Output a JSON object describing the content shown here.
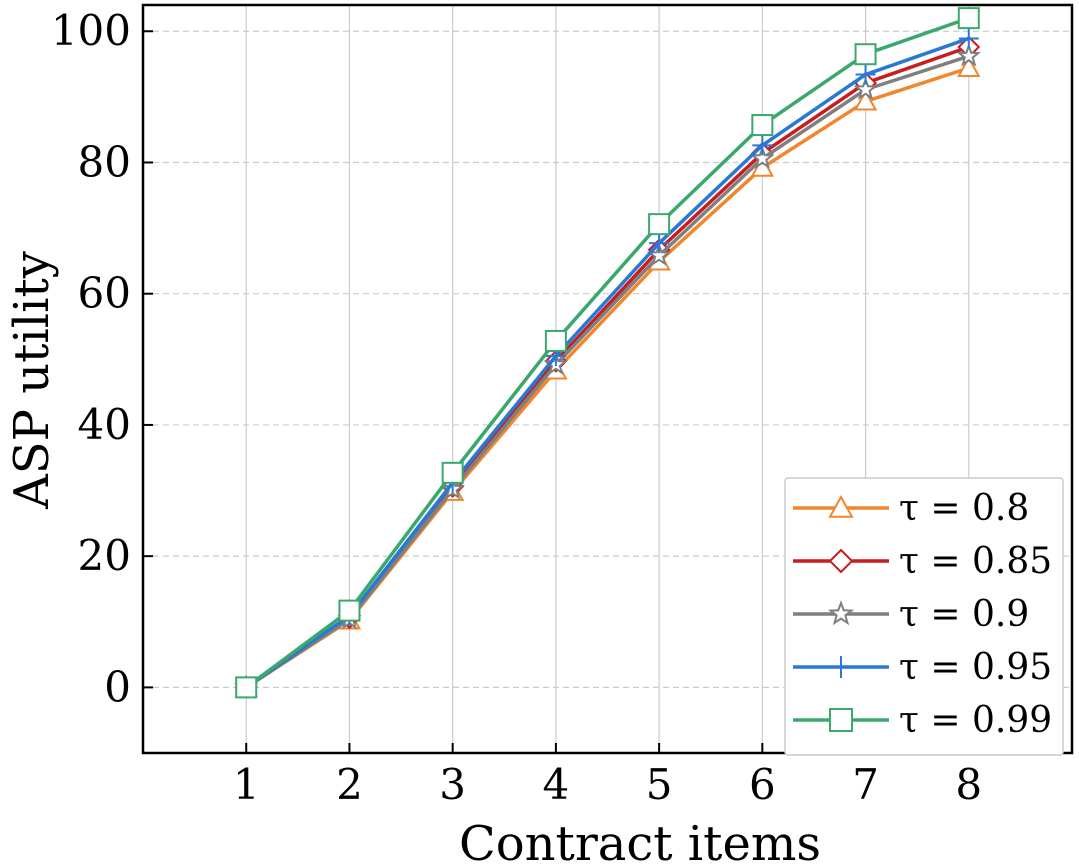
{
  "chart_data": {
    "type": "line",
    "title": "",
    "xlabel": "Contract items",
    "ylabel": "ASP utility",
    "x": [
      1,
      2,
      3,
      4,
      5,
      6,
      7,
      8
    ],
    "xlim": [
      0,
      9
    ],
    "ylim": [
      -10,
      104
    ],
    "yticks": [
      0,
      20,
      40,
      60,
      80,
      100
    ],
    "grid": true,
    "legend_position": "bottom-right",
    "series": [
      {
        "name": "τ = 0.8",
        "color": "#f0862e",
        "marker": "triangle",
        "values": [
          0,
          10.2,
          29.8,
          48.3,
          64.9,
          79.2,
          89.3,
          94.4
        ]
      },
      {
        "name": "τ = 0.85",
        "color": "#c81d1e",
        "marker": "diamond",
        "values": [
          0,
          10.6,
          30.6,
          49.7,
          66.7,
          81.4,
          92.1,
          97.6
        ]
      },
      {
        "name": "τ = 0.9",
        "color": "#7f7f7f",
        "marker": "star",
        "values": [
          0,
          10.4,
          30.2,
          49.2,
          65.8,
          80.6,
          91.1,
          96.2
        ]
      },
      {
        "name": "τ = 0.95",
        "color": "#2878d6",
        "marker": "plus",
        "values": [
          0,
          10.9,
          31.2,
          50.5,
          67.7,
          82.6,
          93.4,
          98.9
        ]
      },
      {
        "name": "τ = 0.99",
        "color": "#3aa86d",
        "marker": "square",
        "values": [
          0,
          11.7,
          32.7,
          52.8,
          70.6,
          85.7,
          96.5,
          102.0
        ]
      }
    ]
  }
}
